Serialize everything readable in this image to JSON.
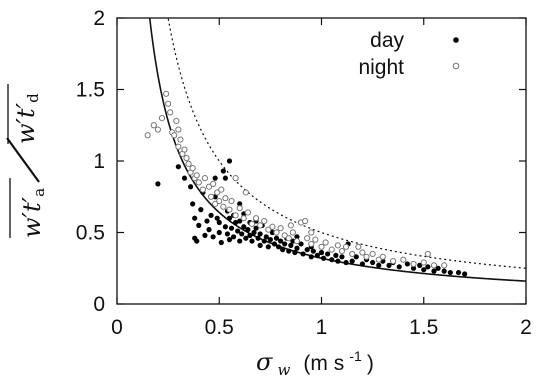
{
  "chart_data": {
    "type": "scatter",
    "xlabel": {
      "symbol": "σ",
      "subscript": "w",
      "units": "(m s",
      "exponent": "-1",
      "close": ")"
    },
    "ylabel": {
      "numerator": "w′t′",
      "numerator_sub": "a",
      "denominator": "w′t′",
      "denominator_sub": "d"
    },
    "xlim": [
      0,
      2
    ],
    "ylim": [
      0,
      2
    ],
    "xticks": [
      "0",
      "0.5",
      "1",
      "1.5",
      "2"
    ],
    "yticks": [
      "0",
      "0.5",
      "1",
      "1.5",
      "2"
    ],
    "legend_position": "top-right",
    "grid": false,
    "series": [
      {
        "name": "day",
        "marker": "filled-circle",
        "color": "#000000",
        "points": [
          [
            0.2,
            0.84
          ],
          [
            0.3,
            0.96
          ],
          [
            0.33,
            0.88
          ],
          [
            0.36,
            0.82
          ],
          [
            0.37,
            0.7
          ],
          [
            0.38,
            0.6
          ],
          [
            0.38,
            0.46
          ],
          [
            0.39,
            0.44
          ],
          [
            0.4,
            0.55
          ],
          [
            0.41,
            0.66
          ],
          [
            0.42,
            0.78
          ],
          [
            0.43,
            0.48
          ],
          [
            0.44,
            0.58
          ],
          [
            0.45,
            0.52
          ],
          [
            0.46,
            0.62
          ],
          [
            0.47,
            0.47
          ],
          [
            0.48,
            0.75
          ],
          [
            0.48,
            0.88
          ],
          [
            0.49,
            0.6
          ],
          [
            0.5,
            0.5
          ],
          [
            0.5,
            0.57
          ],
          [
            0.51,
            0.43
          ],
          [
            0.52,
            0.93
          ],
          [
            0.52,
            0.68
          ],
          [
            0.53,
            0.54
          ],
          [
            0.53,
            0.88
          ],
          [
            0.54,
            0.65
          ],
          [
            0.54,
            0.49
          ],
          [
            0.55,
            0.6
          ],
          [
            0.55,
            0.45
          ],
          [
            0.56,
            0.53
          ],
          [
            0.57,
            0.62
          ],
          [
            0.57,
            0.47
          ],
          [
            0.58,
            0.57
          ],
          [
            0.59,
            0.51
          ],
          [
            0.6,
            0.44
          ],
          [
            0.6,
            0.58
          ],
          [
            0.61,
            0.49
          ],
          [
            0.62,
            0.63
          ],
          [
            0.62,
            0.54
          ],
          [
            0.63,
            0.46
          ],
          [
            0.64,
            0.52
          ],
          [
            0.65,
            0.48
          ],
          [
            0.65,
            0.57
          ],
          [
            0.66,
            0.44
          ],
          [
            0.67,
            0.5
          ],
          [
            0.68,
            0.53
          ],
          [
            0.69,
            0.46
          ],
          [
            0.7,
            0.41
          ],
          [
            0.7,
            0.49
          ],
          [
            0.71,
            0.55
          ],
          [
            0.72,
            0.44
          ],
          [
            0.73,
            0.47
          ],
          [
            0.74,
            0.4
          ],
          [
            0.75,
            0.45
          ],
          [
            0.76,
            0.5
          ],
          [
            0.77,
            0.42
          ],
          [
            0.78,
            0.46
          ],
          [
            0.79,
            0.4
          ],
          [
            0.8,
            0.44
          ],
          [
            0.81,
            0.38
          ],
          [
            0.82,
            0.42
          ],
          [
            0.83,
            0.46
          ],
          [
            0.84,
            0.37
          ],
          [
            0.85,
            0.41
          ],
          [
            0.86,
            0.44
          ],
          [
            0.87,
            0.36
          ],
          [
            0.88,
            0.39
          ],
          [
            0.9,
            0.42
          ],
          [
            0.91,
            0.35
          ],
          [
            0.93,
            0.38
          ],
          [
            0.95,
            0.33
          ],
          [
            0.96,
            0.37
          ],
          [
            0.98,
            0.34
          ],
          [
            1.0,
            0.36
          ],
          [
            1.01,
            0.32
          ],
          [
            1.03,
            0.35
          ],
          [
            1.05,
            0.31
          ],
          [
            1.07,
            0.34
          ],
          [
            1.08,
            0.3
          ],
          [
            1.1,
            0.33
          ],
          [
            1.12,
            0.29
          ],
          [
            1.13,
            0.42
          ],
          [
            1.15,
            0.3
          ],
          [
            1.17,
            0.33
          ],
          [
            1.2,
            0.28
          ],
          [
            1.22,
            0.31
          ],
          [
            1.25,
            0.29
          ],
          [
            1.28,
            0.27
          ],
          [
            1.3,
            0.3
          ],
          [
            1.33,
            0.27
          ],
          [
            1.35,
            0.29
          ],
          [
            1.38,
            0.26
          ],
          [
            1.42,
            0.28
          ],
          [
            1.45,
            0.25
          ],
          [
            1.48,
            0.27
          ],
          [
            1.5,
            0.24
          ],
          [
            1.52,
            0.26
          ],
          [
            1.55,
            0.23
          ],
          [
            1.57,
            0.25
          ],
          [
            1.6,
            0.23
          ],
          [
            1.63,
            0.22
          ],
          [
            1.67,
            0.22
          ],
          [
            1.7,
            0.21
          ],
          [
            0.55,
            1.0
          ],
          [
            0.6,
            0.7
          ],
          [
            0.68,
            0.58
          ],
          [
            0.75,
            0.52
          ],
          [
            0.88,
            0.47
          ],
          [
            0.95,
            0.4
          ],
          [
            1.05,
            0.38
          ]
        ]
      },
      {
        "name": "night",
        "marker": "open-circle",
        "color": "#777777",
        "points": [
          [
            0.15,
            1.18
          ],
          [
            0.18,
            1.25
          ],
          [
            0.2,
            1.22
          ],
          [
            0.22,
            1.3
          ],
          [
            0.24,
            1.47
          ],
          [
            0.25,
            1.4
          ],
          [
            0.26,
            1.34
          ],
          [
            0.27,
            1.2
          ],
          [
            0.28,
            1.18
          ],
          [
            0.29,
            1.28
          ],
          [
            0.3,
            1.1
          ],
          [
            0.3,
            1.22
          ],
          [
            0.31,
            1.15
          ],
          [
            0.32,
            1.05
          ],
          [
            0.33,
            1.08
          ],
          [
            0.34,
            1.02
          ],
          [
            0.35,
            0.98
          ],
          [
            0.36,
            0.92
          ],
          [
            0.37,
            0.95
          ],
          [
            0.38,
            0.88
          ],
          [
            0.39,
            0.9
          ],
          [
            0.4,
            0.85
          ],
          [
            0.42,
            0.8
          ],
          [
            0.43,
            0.88
          ],
          [
            0.45,
            0.82
          ],
          [
            0.46,
            0.75
          ],
          [
            0.47,
            0.84
          ],
          [
            0.48,
            0.7
          ],
          [
            0.49,
            0.78
          ],
          [
            0.5,
            0.72
          ],
          [
            0.51,
            0.8
          ],
          [
            0.52,
            0.68
          ],
          [
            0.53,
            0.74
          ],
          [
            0.55,
            0.66
          ],
          [
            0.56,
            0.72
          ],
          [
            0.58,
            0.62
          ],
          [
            0.6,
            0.67
          ],
          [
            0.62,
            0.6
          ],
          [
            0.64,
            0.64
          ],
          [
            0.66,
            0.56
          ],
          [
            0.68,
            0.6
          ],
          [
            0.7,
            0.55
          ],
          [
            0.72,
            0.58
          ],
          [
            0.74,
            0.52
          ],
          [
            0.76,
            0.54
          ],
          [
            0.78,
            0.5
          ],
          [
            0.8,
            0.53
          ],
          [
            0.82,
            0.48
          ],
          [
            0.84,
            0.46
          ],
          [
            0.85,
            0.55
          ],
          [
            0.86,
            0.5
          ],
          [
            0.88,
            0.44
          ],
          [
            0.9,
            0.57
          ],
          [
            0.92,
            0.58
          ],
          [
            0.93,
            0.46
          ],
          [
            0.95,
            0.42
          ],
          [
            0.97,
            0.45
          ],
          [
            1.0,
            0.4
          ],
          [
            1.02,
            0.43
          ],
          [
            1.05,
            0.38
          ],
          [
            1.08,
            0.41
          ],
          [
            1.1,
            0.37
          ],
          [
            1.12,
            0.4
          ],
          [
            1.15,
            0.35
          ],
          [
            1.2,
            0.36
          ],
          [
            1.22,
            0.33
          ],
          [
            1.25,
            0.35
          ],
          [
            1.28,
            0.31
          ],
          [
            1.3,
            0.33
          ],
          [
            1.35,
            0.3
          ],
          [
            1.4,
            0.31
          ],
          [
            1.45,
            0.28
          ],
          [
            1.5,
            0.29
          ],
          [
            1.52,
            0.35
          ],
          [
            1.55,
            0.27
          ],
          [
            1.6,
            0.27
          ],
          [
            0.58,
            0.88
          ],
          [
            0.63,
            0.78
          ],
          [
            0.95,
            0.5
          ],
          [
            1.18,
            0.4
          ]
        ]
      }
    ],
    "curves": [
      {
        "style": "solid",
        "description": "fit",
        "a": 0.32,
        "b": 0.0
      },
      {
        "style": "dotted",
        "description": "fit",
        "a": 0.5,
        "b": 0.0
      }
    ]
  }
}
